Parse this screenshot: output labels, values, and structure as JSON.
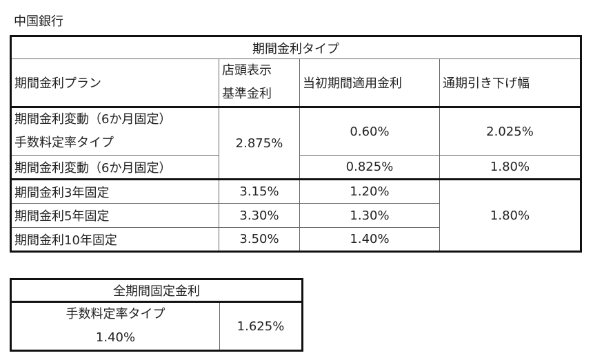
{
  "bank_name": "中国銀行",
  "period_table": {
    "title": "期間金利タイプ",
    "headers": {
      "plan": "期間金利プラン",
      "store_rate_line1": "店頭表示",
      "store_rate_line2": "基準金利",
      "initial_rate": "当初期間適用金利",
      "discount": "通期引き下げ幅"
    },
    "rows": [
      {
        "plan_line1": "期間金利変動（6か月固定）",
        "plan_line2": "手数料定率タイプ",
        "initial_rate": "0.60%",
        "discount": "2.025%"
      },
      {
        "plan": "期間金利変動（6か月固定）",
        "initial_rate": "0.825%",
        "discount": "1.80%"
      },
      {
        "plan": "期間金利3年固定",
        "store_rate": "3.15%",
        "initial_rate": "1.20%"
      },
      {
        "plan": "期間金利5年固定",
        "store_rate": "3.30%",
        "initial_rate": "1.30%"
      },
      {
        "plan": "期間金利10年固定",
        "store_rate": "3.50%",
        "initial_rate": "1.40%"
      }
    ],
    "variable_store_rate": "2.875%",
    "fixed_discount": "1.80%"
  },
  "full_table": {
    "title": "全期間固定金利",
    "plan_label": "手数料定率タイプ",
    "plan_value": "1.40%",
    "rate": "1.625%"
  }
}
